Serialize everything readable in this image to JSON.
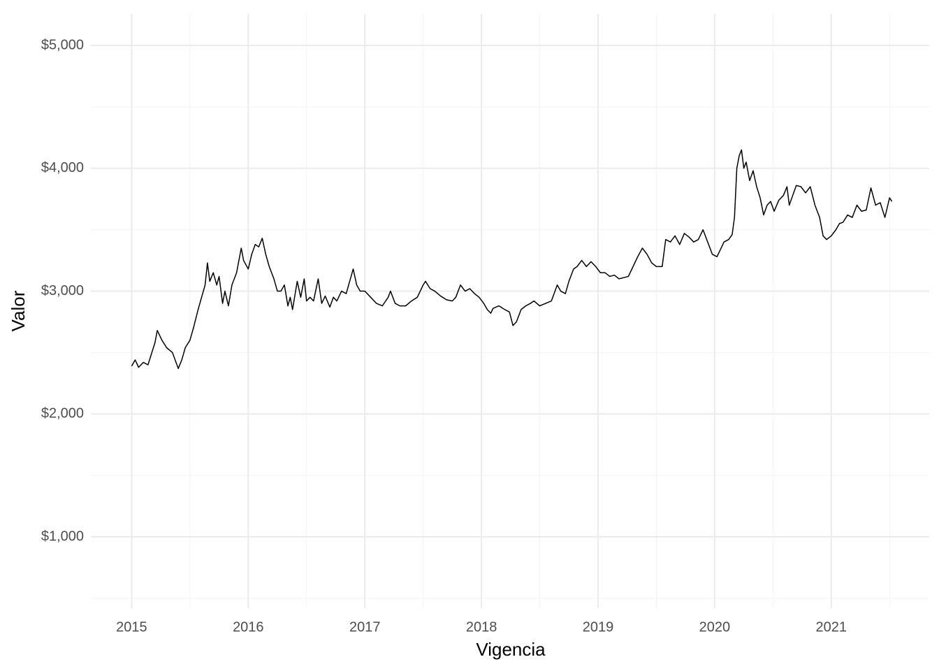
{
  "chart_data": {
    "type": "line",
    "x_label": "Vigencia",
    "y_label": "Valor",
    "x": [
      2015.0,
      2015.03,
      2015.06,
      2015.1,
      2015.14,
      2015.2,
      2015.22,
      2015.26,
      2015.3,
      2015.35,
      2015.4,
      2015.43,
      2015.46,
      2015.5,
      2015.53,
      2015.57,
      2015.6,
      2015.63,
      2015.65,
      2015.67,
      2015.7,
      2015.73,
      2015.75,
      2015.78,
      2015.8,
      2015.83,
      2015.86,
      2015.9,
      2015.94,
      2015.96,
      2016.0,
      2016.03,
      2016.06,
      2016.09,
      2016.12,
      2016.15,
      2016.18,
      2016.22,
      2016.25,
      2016.28,
      2016.31,
      2016.34,
      2016.36,
      2016.38,
      2016.42,
      2016.45,
      2016.48,
      2016.5,
      2016.53,
      2016.56,
      2016.6,
      2016.63,
      2016.66,
      2016.7,
      2016.73,
      2016.76,
      2016.8,
      2016.84,
      2016.87,
      2016.9,
      2016.93,
      2016.96,
      2017.0,
      2017.05,
      2017.1,
      2017.15,
      2017.2,
      2017.22,
      2017.26,
      2017.3,
      2017.35,
      2017.4,
      2017.45,
      2017.5,
      2017.52,
      2017.56,
      2017.6,
      2017.65,
      2017.7,
      2017.75,
      2017.78,
      2017.82,
      2017.86,
      2017.9,
      2017.94,
      2017.98,
      2018.02,
      2018.05,
      2018.08,
      2018.1,
      2018.15,
      2018.2,
      2018.24,
      2018.27,
      2018.3,
      2018.34,
      2018.38,
      2018.42,
      2018.45,
      2018.5,
      2018.55,
      2018.6,
      2018.65,
      2018.68,
      2018.72,
      2018.75,
      2018.79,
      2018.82,
      2018.86,
      2018.9,
      2018.94,
      2018.98,
      2019.02,
      2019.06,
      2019.1,
      2019.14,
      2019.18,
      2019.22,
      2019.26,
      2019.3,
      2019.34,
      2019.38,
      2019.42,
      2019.46,
      2019.5,
      2019.55,
      2019.58,
      2019.62,
      2019.66,
      2019.7,
      2019.74,
      2019.78,
      2019.82,
      2019.86,
      2019.9,
      2019.94,
      2019.98,
      2020.02,
      2020.05,
      2020.08,
      2020.12,
      2020.15,
      2020.17,
      2020.19,
      2020.21,
      2020.23,
      2020.25,
      2020.27,
      2020.3,
      2020.33,
      2020.36,
      2020.39,
      2020.42,
      2020.45,
      2020.48,
      2020.51,
      2020.55,
      2020.59,
      2020.62,
      2020.64,
      2020.67,
      2020.7,
      2020.74,
      2020.78,
      2020.82,
      2020.86,
      2020.9,
      2020.93,
      2020.96,
      2021.0,
      2021.04,
      2021.07,
      2021.1,
      2021.14,
      2021.18,
      2021.22,
      2021.26,
      2021.3,
      2021.34,
      2021.38,
      2021.42,
      2021.46,
      2021.5,
      2021.52
    ],
    "series": [
      {
        "color": "#000000",
        "values": [
          2390,
          2440,
          2380,
          2420,
          2400,
          2580,
          2680,
          2600,
          2540,
          2500,
          2370,
          2440,
          2540,
          2600,
          2700,
          2850,
          2950,
          3050,
          3230,
          3080,
          3150,
          3050,
          3120,
          2900,
          3000,
          2880,
          3050,
          3150,
          3350,
          3250,
          3180,
          3300,
          3380,
          3360,
          3430,
          3300,
          3200,
          3100,
          3000,
          3000,
          3050,
          2880,
          2950,
          2850,
          3080,
          2950,
          3100,
          2920,
          2950,
          2920,
          3100,
          2900,
          2960,
          2870,
          2950,
          2920,
          3000,
          2980,
          3080,
          3180,
          3050,
          3000,
          3000,
          2950,
          2900,
          2880,
          2950,
          3000,
          2900,
          2880,
          2880,
          2920,
          2950,
          3050,
          3080,
          3020,
          3000,
          2960,
          2930,
          2920,
          2950,
          3050,
          3000,
          3020,
          2980,
          2950,
          2900,
          2850,
          2820,
          2860,
          2880,
          2850,
          2830,
          2720,
          2750,
          2850,
          2880,
          2900,
          2920,
          2880,
          2900,
          2920,
          3050,
          3000,
          2980,
          3080,
          3180,
          3200,
          3250,
          3200,
          3240,
          3200,
          3150,
          3150,
          3120,
          3130,
          3100,
          3110,
          3120,
          3200,
          3280,
          3350,
          3300,
          3230,
          3200,
          3200,
          3420,
          3400,
          3450,
          3380,
          3470,
          3440,
          3400,
          3420,
          3500,
          3400,
          3300,
          3280,
          3340,
          3400,
          3420,
          3460,
          3600,
          4000,
          4100,
          4150,
          4000,
          4050,
          3900,
          3980,
          3850,
          3760,
          3620,
          3700,
          3730,
          3650,
          3740,
          3780,
          3850,
          3700,
          3780,
          3860,
          3850,
          3800,
          3850,
          3700,
          3600,
          3450,
          3420,
          3450,
          3500,
          3550,
          3560,
          3620,
          3600,
          3700,
          3650,
          3660,
          3840,
          3700,
          3720,
          3600,
          3760,
          3730
        ]
      }
    ],
    "xlim": [
      2014.65,
      2021.84
    ],
    "ylim": [
      420,
      5256
    ],
    "xticks": [
      2015,
      2016,
      2017,
      2018,
      2019,
      2020,
      2021
    ],
    "xminorticks": [
      2014.5,
      2015.5,
      2016.5,
      2017.5,
      2018.5,
      2019.5,
      2020.5,
      2021.5
    ],
    "yticks": [
      {
        "value": 1000,
        "label": "$1,000"
      },
      {
        "value": 2000,
        "label": "$2,000"
      },
      {
        "value": 3000,
        "label": "$3,000"
      },
      {
        "value": 4000,
        "label": "$4,000"
      },
      {
        "value": 5000,
        "label": "$5,000"
      }
    ],
    "yminorticks": [
      500,
      1500,
      2500,
      3500,
      4500
    ],
    "grid": true
  }
}
